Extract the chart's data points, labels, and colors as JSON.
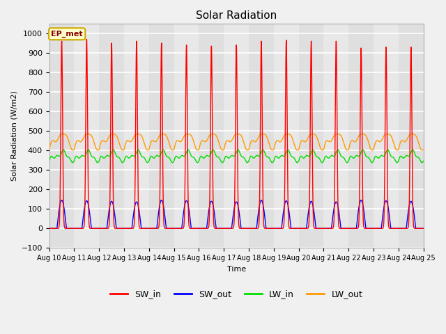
{
  "title": "Solar Radiation",
  "ylabel": "Solar Radiation (W/m2)",
  "xlabel": "Time",
  "ylim": [
    -100,
    1050
  ],
  "x_tick_labels": [
    "Aug 10",
    "Aug 11",
    "Aug 12",
    "Aug 13",
    "Aug 14",
    "Aug 15",
    "Aug 16",
    "Aug 17",
    "Aug 18",
    "Aug 19",
    "Aug 20",
    "Aug 21",
    "Aug 22",
    "Aug 23",
    "Aug 24",
    "Aug 25"
  ],
  "colors": {
    "SW_in": "#ff0000",
    "SW_out": "#0000ff",
    "LW_in": "#00dd00",
    "LW_out": "#ff9900"
  },
  "annotation_text": "EP_met",
  "annotation_bg": "#ffffcc",
  "annotation_border": "#ccaa00",
  "plot_bg": "#e8e8e8",
  "stripe_color": "#d0d0d0",
  "grid_color": "#ffffff",
  "num_days": 15,
  "points_per_day": 240
}
